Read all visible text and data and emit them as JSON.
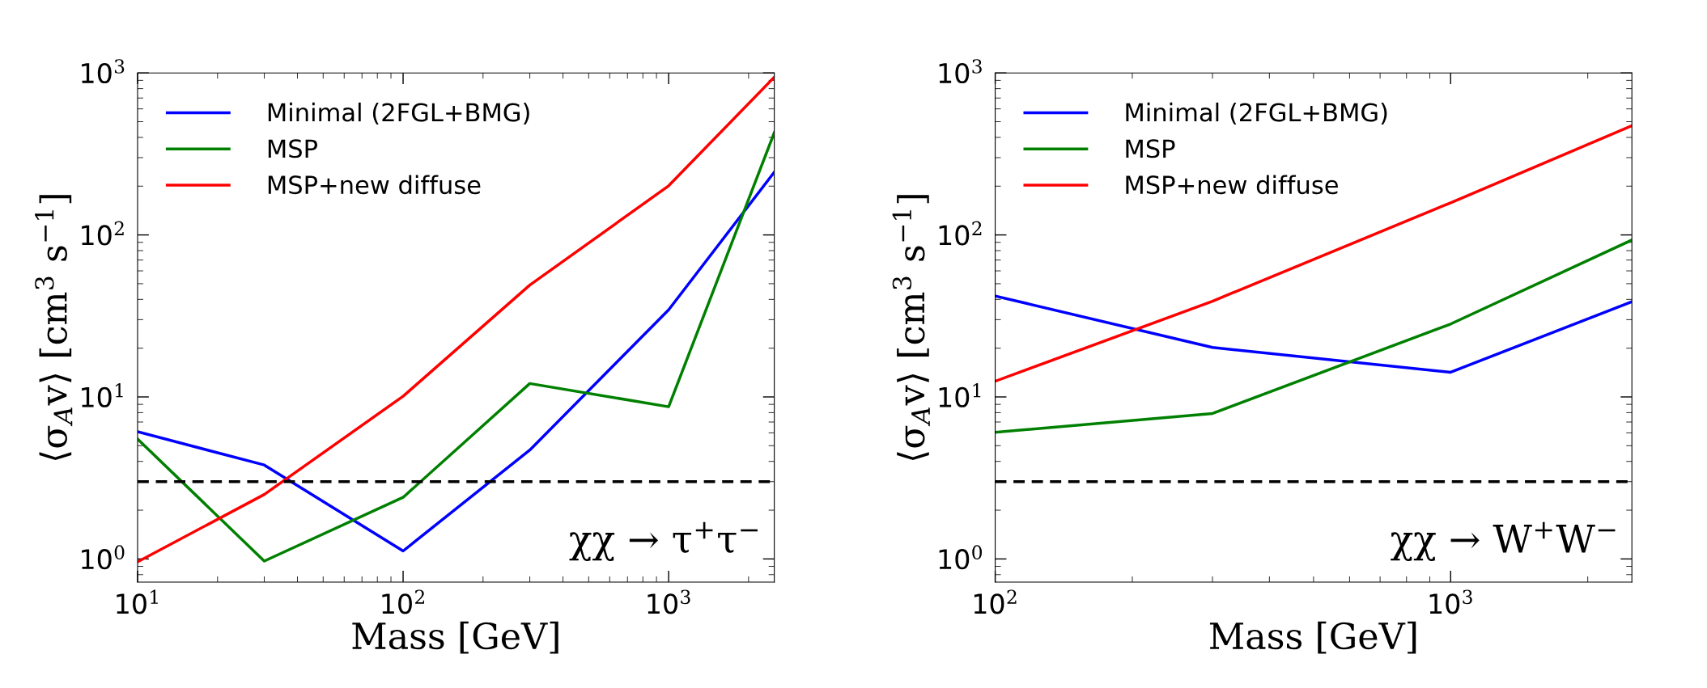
{
  "chart_data": [
    {
      "type": "line",
      "xlabel": "Mass [GeV]",
      "ylabel": "⟨σ$_{A}$v⟩ [cm$^{3}$ s$^{−1}$]",
      "log": "xy",
      "legend": "top left",
      "grid": false,
      "x": [
        10,
        30,
        100,
        300,
        1000,
        2500
      ],
      "series": [
        {
          "name": "Minimal (2FGL+BMG)",
          "color": "#0000ff",
          "values": [
            6.1,
            3.8,
            1.12,
            4.7,
            34.5,
            244
          ]
        },
        {
          "name": "MSP",
          "color": "#008000",
          "values": [
            5.5,
            0.97,
            2.4,
            12.1,
            8.7,
            428
          ]
        },
        {
          "name": "MSP+new diffuse",
          "color": "#ff0000",
          "values": [
            0.96,
            2.5,
            10.1,
            49,
            201,
            942
          ]
        }
      ],
      "xlim": [
        10,
        2500
      ],
      "ylim": [
        0.72,
        1000
      ],
      "xticks": [
        {
          "value": 10,
          "label": "10$^{1}$"
        },
        {
          "value": 100,
          "label": "10$^{2}$"
        },
        {
          "value": 1000,
          "label": "10$^{3}$"
        }
      ],
      "yticks": [
        {
          "value": 1,
          "label": "10$^{0}$"
        },
        {
          "value": 10,
          "label": "10$^{1}$"
        },
        {
          "value": 100,
          "label": "10$^{2}$"
        },
        {
          "value": 1000,
          "label": "10$^{3}$"
        }
      ],
      "ref_lines": [
        {
          "axis": "y",
          "value": 3,
          "color": "#000000",
          "line_style": "dashed"
        }
      ],
      "annotations": [
        "χχ → τ$^{+}$τ$^{−}$"
      ]
    },
    {
      "type": "line",
      "xlabel": "Mass [GeV]",
      "ylabel": "⟨σ$_{A}$v⟩ [cm$^{3}$ s$^{−1}$]",
      "log": "xy",
      "legend": "top left",
      "grid": false,
      "x": [
        100,
        300,
        1000,
        2500
      ],
      "series": [
        {
          "name": "Minimal (2FGL+BMG)",
          "color": "#0000ff",
          "values": [
            42,
            20.2,
            14.2,
            38.7
          ]
        },
        {
          "name": "MSP",
          "color": "#008000",
          "values": [
            6.05,
            7.9,
            28.2,
            93
          ]
        },
        {
          "name": "MSP+new diffuse",
          "color": "#ff0000",
          "values": [
            12.5,
            39,
            158,
            472
          ]
        }
      ],
      "xlim": [
        100,
        2500
      ],
      "ylim": [
        0.72,
        1000
      ],
      "xticks": [
        {
          "value": 100,
          "label": "10$^{2}$"
        },
        {
          "value": 1000,
          "label": "10$^{3}$"
        }
      ],
      "yticks": [
        {
          "value": 1,
          "label": "10$^{0}$"
        },
        {
          "value": 10,
          "label": "10$^{1}$"
        },
        {
          "value": 100,
          "label": "10$^{2}$"
        },
        {
          "value": 1000,
          "label": "10$^{3}$"
        }
      ],
      "ref_lines": [
        {
          "axis": "y",
          "value": 3,
          "color": "#000000",
          "line_style": "dashed"
        }
      ],
      "annotations": [
        "χχ → W$^{+}$W$^{−}$"
      ]
    }
  ]
}
